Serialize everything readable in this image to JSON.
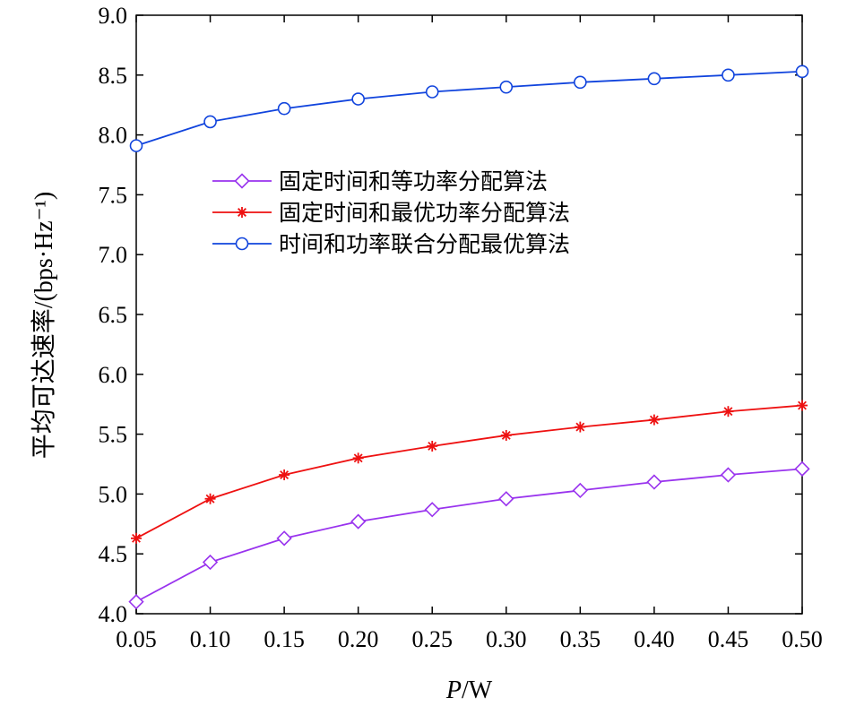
{
  "chart_data": {
    "type": "line",
    "xlabel_italic": "P",
    "xlabel_rest": "/W",
    "ylabel": "平均可达速率/(bps·Hz⁻¹)",
    "xlim": [
      0.05,
      0.5
    ],
    "ylim": [
      4.0,
      9.0
    ],
    "x": [
      0.05,
      0.1,
      0.15,
      0.2,
      0.25,
      0.3,
      0.35,
      0.4,
      0.45,
      0.5
    ],
    "xticks": [
      "0.05",
      "0.10",
      "0.15",
      "0.20",
      "0.25",
      "0.30",
      "0.35",
      "0.40",
      "0.45",
      "0.50"
    ],
    "yticks": [
      "4.0",
      "4.5",
      "5.0",
      "5.5",
      "6.0",
      "6.5",
      "7.0",
      "7.5",
      "8.0",
      "8.5",
      "9.0"
    ],
    "legend_position": "center-left",
    "grid": false,
    "series": [
      {
        "name": "固定时间和等功率分配算法",
        "color": "#9933ee",
        "marker": "diamond",
        "values": [
          4.1,
          4.43,
          4.63,
          4.77,
          4.87,
          4.96,
          5.03,
          5.1,
          5.16,
          5.21
        ]
      },
      {
        "name": "固定时间和最优功率分配算法",
        "color": "#ee1111",
        "marker": "star",
        "values": [
          4.63,
          4.96,
          5.16,
          5.3,
          5.4,
          5.49,
          5.56,
          5.62,
          5.69,
          5.74
        ]
      },
      {
        "name": "时间和功率联合分配最优算法",
        "color": "#1144dd",
        "marker": "circle",
        "values": [
          7.91,
          8.11,
          8.22,
          8.3,
          8.36,
          8.4,
          8.44,
          8.47,
          8.5,
          8.53
        ]
      }
    ]
  }
}
